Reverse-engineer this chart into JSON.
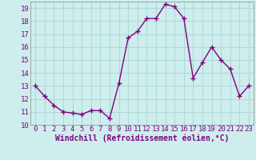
{
  "x": [
    0,
    1,
    2,
    3,
    4,
    5,
    6,
    7,
    8,
    9,
    10,
    11,
    12,
    13,
    14,
    15,
    16,
    17,
    18,
    19,
    20,
    21,
    22,
    23
  ],
  "y": [
    13.0,
    12.2,
    11.5,
    11.0,
    10.9,
    10.8,
    11.1,
    11.1,
    10.5,
    13.2,
    16.7,
    17.2,
    18.2,
    18.2,
    19.3,
    19.1,
    18.2,
    13.6,
    14.8,
    16.0,
    15.0,
    14.3,
    12.2,
    13.0
  ],
  "line_color": "#800080",
  "marker": "+",
  "marker_size": 4,
  "linewidth": 1.0,
  "bg_color": "#cdeeed",
  "grid_color": "#b0d8d8",
  "xlabel": "Windchill (Refroidissement éolien,°C)",
  "xlabel_fontsize": 7,
  "tick_fontsize": 6.5,
  "ylim": [
    10,
    19.5
  ],
  "yticks": [
    10,
    11,
    12,
    13,
    14,
    15,
    16,
    17,
    18,
    19
  ],
  "xticks": [
    0,
    1,
    2,
    3,
    4,
    5,
    6,
    7,
    8,
    9,
    10,
    11,
    12,
    13,
    14,
    15,
    16,
    17,
    18,
    19,
    20,
    21,
    22,
    23
  ]
}
